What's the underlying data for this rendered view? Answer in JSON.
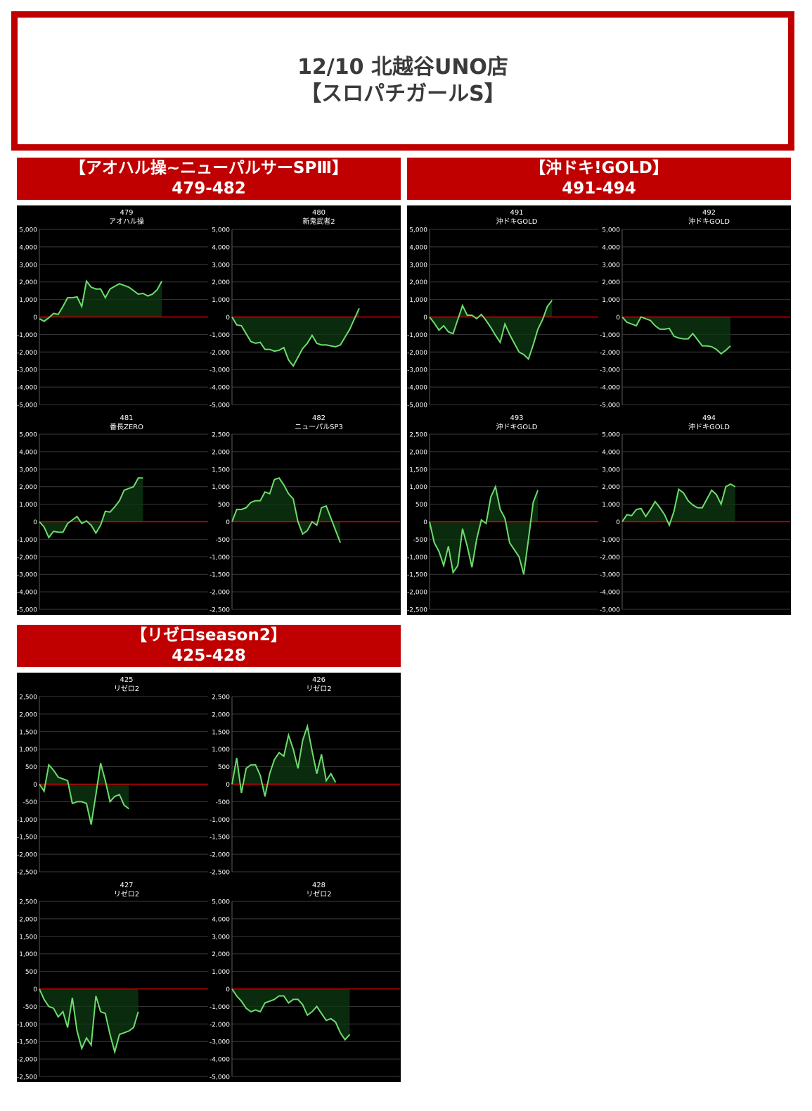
{
  "page_title": {
    "line1": "12/10 北越谷UNO店",
    "line2": "【スロパチガールS】"
  },
  "sections": [
    {
      "title": "【アオハル操~ニューパルサーSPⅢ】",
      "range": "479-482"
    },
    {
      "title": "【沖ドキ!GOLD】",
      "range": "491-494"
    },
    {
      "title": "【リゼロseason2】",
      "range": "425-428"
    }
  ],
  "chart_data": [
    {
      "type": "area",
      "number": "479",
      "name": "アオハル操",
      "ylim": [
        -5000,
        5000
      ],
      "step": 1000,
      "values": [
        -100,
        -250,
        -50,
        200,
        150,
        600,
        1100,
        1100,
        1150,
        600,
        2050,
        1700,
        1600,
        1600,
        1100,
        1600,
        1750,
        1900,
        1800,
        1700,
        1500,
        1300,
        1350,
        1200,
        1300,
        1550,
        2050
      ]
    },
    {
      "type": "area",
      "number": "480",
      "name": "新鬼武者2",
      "ylim": [
        -5000,
        5000
      ],
      "step": 1000,
      "values": [
        0,
        -450,
        -500,
        -950,
        -1400,
        -1500,
        -1450,
        -1850,
        -1850,
        -1950,
        -1900,
        -1750,
        -2450,
        -2800,
        -2300,
        -1800,
        -1500,
        -1050,
        -1500,
        -1600,
        -1600,
        -1650,
        -1700,
        -1600,
        -1150,
        -700,
        -100,
        500
      ]
    },
    {
      "type": "area",
      "number": "491",
      "name": "沖ドキGOLD",
      "ylim": [
        -5000,
        5000
      ],
      "step": 1000,
      "values": [
        0,
        -350,
        -750,
        -500,
        -850,
        -950,
        -150,
        650,
        100,
        100,
        -100,
        150,
        -200,
        -600,
        -1050,
        -1450,
        -400,
        -1000,
        -1500,
        -2000,
        -2150,
        -2400,
        -1600,
        -700,
        -150,
        600,
        950
      ]
    },
    {
      "type": "area",
      "number": "492",
      "name": "沖ドキGOLD",
      "ylim": [
        -5000,
        5000
      ],
      "step": 1000,
      "values": [
        0,
        -300,
        -400,
        -500,
        0,
        -100,
        -200,
        -500,
        -700,
        -700,
        -650,
        -1100,
        -1200,
        -1250,
        -1250,
        -950,
        -1300,
        -1650,
        -1650,
        -1700,
        -1850,
        -2100,
        -1900,
        -1650
      ]
    },
    {
      "type": "area",
      "number": "481",
      "name": "番長ZERO",
      "ylim": [
        -5000,
        5000
      ],
      "step": 1000,
      "values": [
        0,
        -300,
        -900,
        -550,
        -600,
        -600,
        -100,
        100,
        300,
        -100,
        50,
        -200,
        -650,
        -200,
        600,
        550,
        850,
        1200,
        1800,
        1900,
        2000,
        2500,
        2500
      ]
    },
    {
      "type": "area",
      "number": "482",
      "name": "ニューパルSP3",
      "ylim": [
        -2500,
        2500
      ],
      "step": 500,
      "values": [
        0,
        350,
        350,
        400,
        550,
        600,
        600,
        850,
        800,
        1200,
        1250,
        1050,
        800,
        650,
        0,
        -350,
        -250,
        0,
        -100,
        400,
        450,
        100,
        -250,
        -600
      ]
    },
    {
      "type": "area",
      "number": "493",
      "name": "沖ドキGOLD",
      "ylim": [
        -2500,
        2500
      ],
      "step": 500,
      "values": [
        0,
        -600,
        -850,
        -1250,
        -700,
        -1450,
        -1250,
        -200,
        -700,
        -1300,
        -500,
        50,
        -50,
        700,
        1000,
        350,
        100,
        -600,
        -800,
        -1000,
        -1500,
        -500,
        550,
        900
      ]
    },
    {
      "type": "area",
      "number": "494",
      "name": "沖ドキGOLD",
      "ylim": [
        -5000,
        5000
      ],
      "step": 1000,
      "values": [
        0,
        400,
        350,
        700,
        750,
        300,
        700,
        1150,
        800,
        400,
        -200,
        600,
        1850,
        1650,
        1200,
        950,
        800,
        800,
        1300,
        1800,
        1550,
        1000,
        2000,
        2150,
        2000
      ]
    },
    {
      "type": "area",
      "number": "425",
      "name": "リゼロ2",
      "ylim": [
        -2500,
        2500
      ],
      "step": 500,
      "values": [
        0,
        -200,
        550,
        400,
        200,
        150,
        100,
        -550,
        -500,
        -500,
        -550,
        -1150,
        -300,
        600,
        100,
        -500,
        -350,
        -300,
        -600,
        -700
      ]
    },
    {
      "type": "area",
      "number": "426",
      "name": "リゼロ2",
      "ylim": [
        -2500,
        2500
      ],
      "step": 500,
      "values": [
        0,
        750,
        -250,
        450,
        550,
        550,
        250,
        -350,
        300,
        700,
        900,
        800,
        1400,
        1000,
        450,
        1250,
        1650,
        950,
        300,
        850,
        100,
        300,
        50
      ]
    },
    {
      "type": "area",
      "number": "427",
      "name": "リゼロ2",
      "ylim": [
        -2500,
        2500
      ],
      "step": 500,
      "values": [
        0,
        -300,
        -500,
        -550,
        -800,
        -650,
        -1100,
        -250,
        -1200,
        -1700,
        -1400,
        -1600,
        -200,
        -650,
        -700,
        -1300,
        -1800,
        -1300,
        -1250,
        -1200,
        -1100,
        -650
      ]
    },
    {
      "type": "area",
      "number": "428",
      "name": "リゼロ2",
      "ylim": [
        -5000,
        5000
      ],
      "step": 1000,
      "values": [
        0,
        -400,
        -700,
        -1100,
        -1300,
        -1200,
        -1300,
        -800,
        -700,
        -600,
        -400,
        -400,
        -800,
        -600,
        -600,
        -900,
        -1500,
        -1300,
        -1000,
        -1400,
        -1800,
        -1700,
        -1900,
        -2500,
        -2900,
        -2600
      ]
    }
  ]
}
